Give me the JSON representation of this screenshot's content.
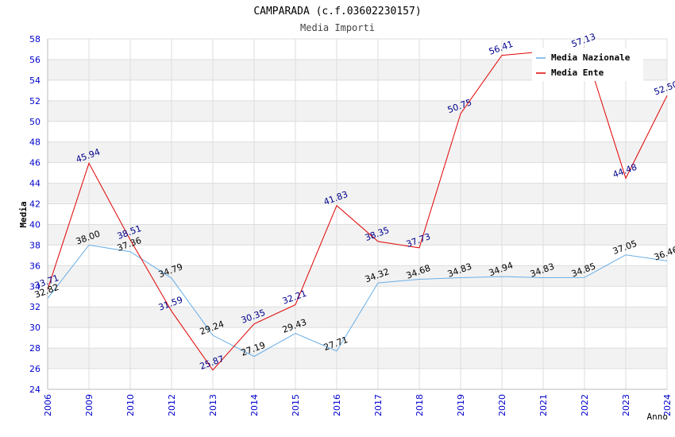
{
  "chart_data": {
    "type": "line",
    "title": "CAMPARADA (c.f.03602230157)",
    "subtitle": "Media Importi",
    "xlabel": "Anno",
    "ylabel": "Media",
    "categories": [
      "2006",
      "2009",
      "2010",
      "2012",
      "2013",
      "2014",
      "2015",
      "2016",
      "2017",
      "2018",
      "2019",
      "2020",
      "2021",
      "2022",
      "2023",
      "2024"
    ],
    "ylim": [
      24,
      58
    ],
    "yticks": [
      "24",
      "26",
      "28",
      "30",
      "32",
      "34",
      "36",
      "38",
      "40",
      "42",
      "44",
      "46",
      "48",
      "50",
      "52",
      "54",
      "56",
      "58"
    ],
    "legend_position": "top-right",
    "series": [
      {
        "name": "Media Nazionale",
        "color": "#6aaee6",
        "label_color": "#000000",
        "values": [
          32.82,
          38.0,
          37.36,
          34.79,
          29.24,
          27.19,
          29.43,
          27.71,
          34.32,
          34.68,
          34.83,
          34.94,
          34.83,
          34.85,
          37.05,
          36.46
        ],
        "labels": [
          "32.82",
          "38.00",
          "37.36",
          "34.79",
          "29.24",
          "27.19",
          "29.43",
          "27.71",
          "34.32",
          "34.68",
          "34.83",
          "34.94",
          "34.83",
          "34.85",
          "37.05",
          "36.46"
        ]
      },
      {
        "name": "Media Ente",
        "color": "#e00000",
        "label_color": "#00008b",
        "values": [
          33.71,
          45.94,
          38.51,
          31.59,
          25.87,
          30.35,
          32.21,
          41.83,
          38.35,
          37.73,
          50.75,
          56.41,
          null,
          57.13,
          44.48,
          52.5
        ],
        "labels": [
          "33.71",
          "45.94",
          "38.51",
          "31.59",
          "25.87",
          "30.35",
          "32.21",
          "41.83",
          "38.35",
          "37.73",
          "50.75",
          "56.41",
          "",
          "57.13",
          "44.48",
          "52.50"
        ]
      }
    ],
    "grid": true,
    "colors": {
      "axis_tick_labels": "#0000cc",
      "band_fill": "#f2f2f2",
      "grid_line": "#dddddd"
    }
  }
}
